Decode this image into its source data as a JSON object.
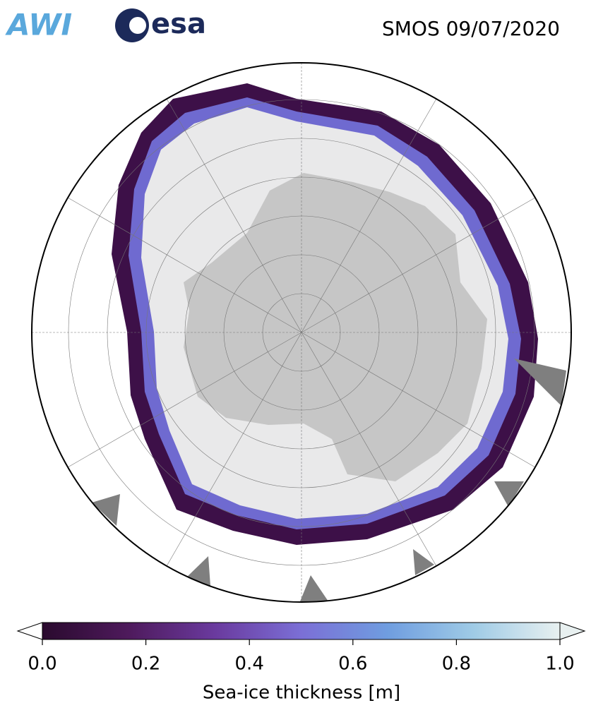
{
  "header": {
    "title": "SMOS 09/07/2020",
    "logos": [
      "AWI",
      "esa"
    ]
  },
  "colorbar": {
    "label": "Sea-ice thickness [m]",
    "range": [
      0,
      1
    ],
    "ticks": [
      {
        "value": 0,
        "label": "0.0"
      },
      0.2,
      0.4,
      0.6,
      0.8,
      {
        "value": 1,
        "label": "1.0"
      }
    ],
    "colormap": [
      "#2a0a2e",
      "#4e1a5c",
      "#6a3a9e",
      "#7b6fd6",
      "#6f9de0",
      "#9fcbe6",
      "#e8f0f0"
    ]
  }
}
